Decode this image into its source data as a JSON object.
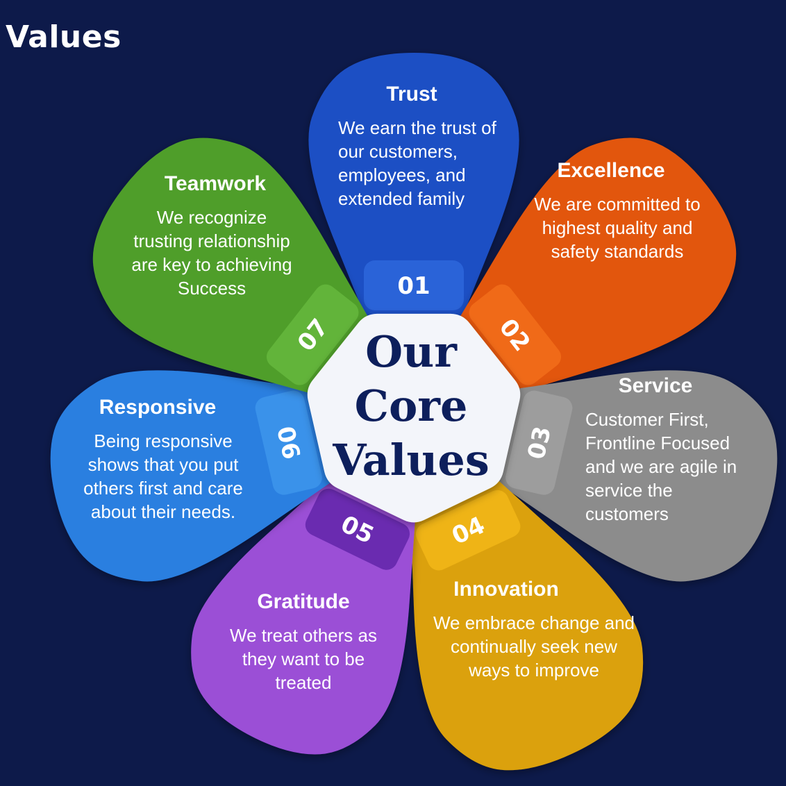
{
  "title": "Values",
  "center": {
    "lines": [
      "Our",
      "Core",
      "Values"
    ]
  },
  "colors": {
    "background": "#0d1a4a",
    "center_fill": "#f3f5fa",
    "center_text": "#0d1f5c"
  },
  "petals": [
    {
      "number": "01",
      "title": "Trust",
      "color": "#1f4fc4",
      "tab_color": "#2a63d8",
      "lines": [
        "We earn the trust of",
        "our customers,",
        "employees, and",
        "extended family"
      ]
    },
    {
      "number": "02",
      "title": "Excellence",
      "color": "#e2560a",
      "tab_color": "#f06a18",
      "lines": [
        "We are committed to",
        "highest quality and",
        "safety standards"
      ]
    },
    {
      "number": "03",
      "title": "Service",
      "color": "#8c8c8c",
      "tab_color": "#9d9d9d",
      "lines": [
        "Customer First,",
        "Frontline Focused",
        "and we are agile in",
        "service the",
        "customers"
      ]
    },
    {
      "number": "04",
      "title": "Innovation",
      "color": "#dba10a",
      "tab_color": "#efb416",
      "lines": [
        "We embrace change and",
        "continually seek new",
        "ways to improve"
      ]
    },
    {
      "number": "05",
      "title": "Gratitude",
      "color": "#9b4fd6",
      "tab_color": "#6a2bb0",
      "lines": [
        "We treat others as",
        "they want to be",
        "treated"
      ]
    },
    {
      "number": "06",
      "title": "Responsive",
      "color": "#2a7fe0",
      "tab_color": "#3a92ea",
      "lines": [
        "Being responsive",
        "shows that you put",
        "others first and care",
        "about their needs."
      ]
    },
    {
      "number": "07",
      "title": "Teamwork",
      "color": "#4f9e2a",
      "tab_color": "#62b43a",
      "lines": [
        "We recognize",
        "trusting relationship",
        "are key to achieving",
        "Success"
      ]
    }
  ]
}
